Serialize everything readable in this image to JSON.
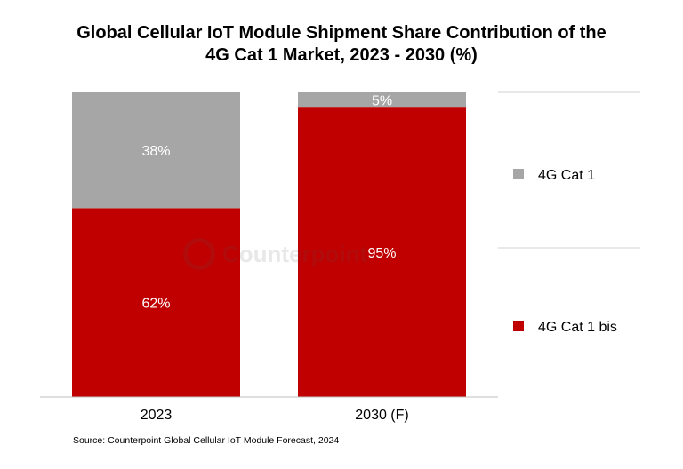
{
  "chart_data": {
    "type": "bar",
    "stacked": true,
    "title_line1": "Global Cellular IoT Module Shipment Share Contribution of the",
    "title_line2": "4G Cat 1 Market, 2023 - 2030 (%)",
    "categories": [
      "2023",
      "2030 (F)"
    ],
    "series": [
      {
        "name": "4G Cat 1 bis",
        "values": [
          62,
          95
        ],
        "labels": [
          "62%",
          "95%"
        ],
        "color": "#C00000"
      },
      {
        "name": "4G Cat 1",
        "values": [
          38,
          5
        ],
        "labels": [
          "38%",
          "5%"
        ],
        "color": "#A6A6A6"
      }
    ],
    "ylim": [
      0,
      100
    ],
    "grid": false,
    "legend_position": "right",
    "source": "Source: Counterpoint Global Cellular IoT Module Forecast, 2024",
    "watermark": "Counterpoint"
  }
}
